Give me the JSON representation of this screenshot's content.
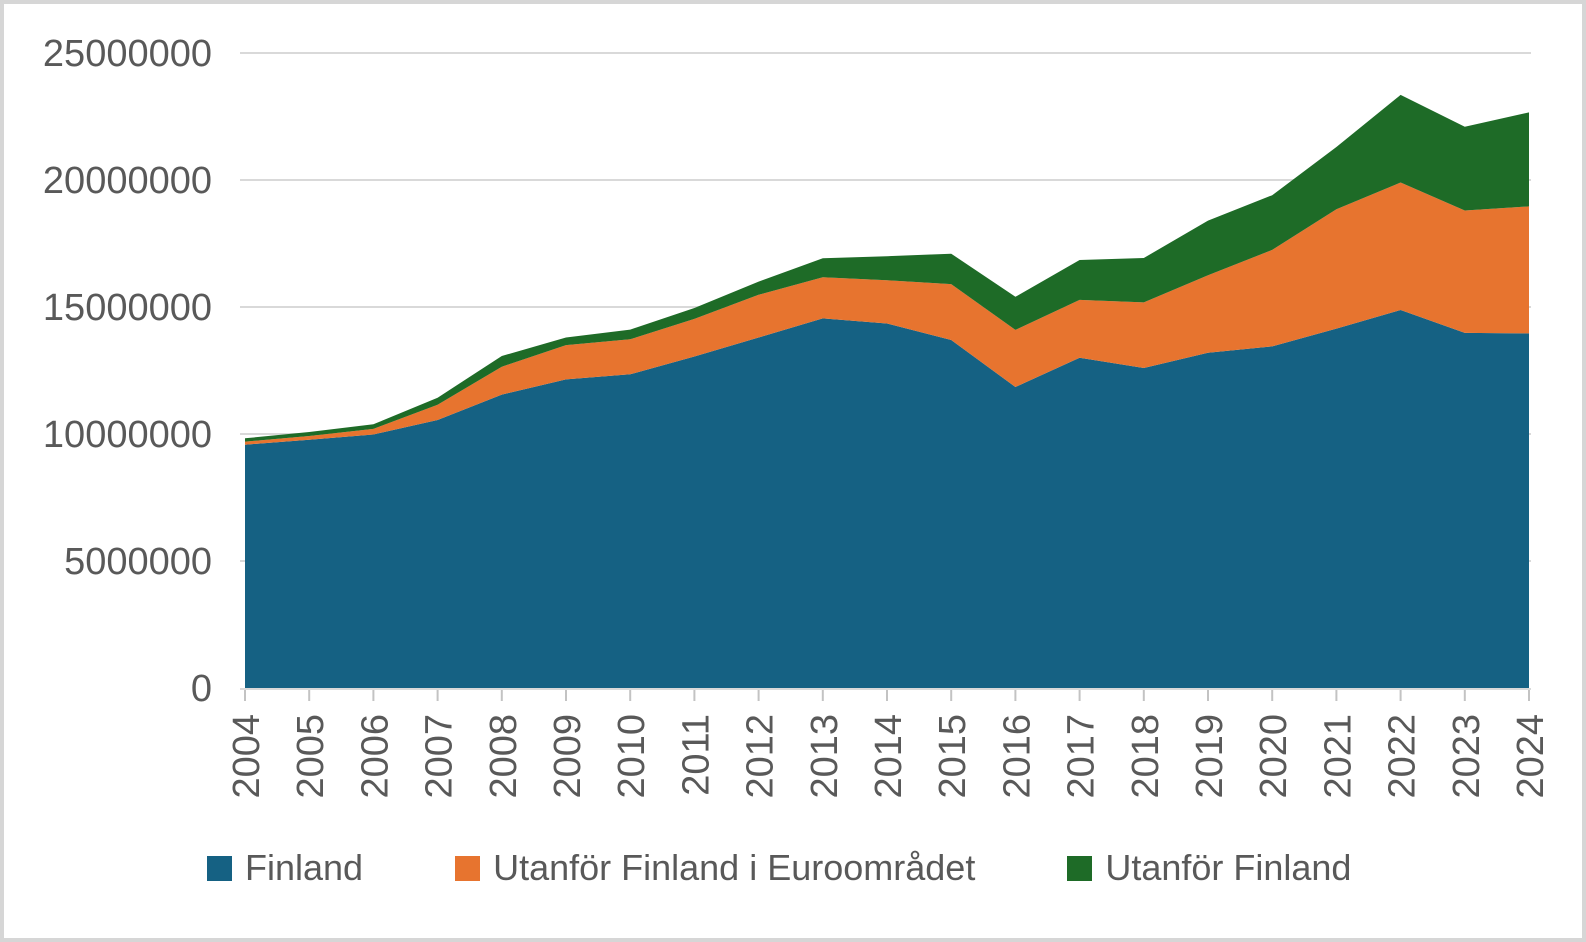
{
  "chart_data": {
    "type": "area",
    "subtype": "stacked",
    "title": "",
    "xlabel": "",
    "ylabel": "",
    "x": [
      2004,
      2005,
      2006,
      2007,
      2008,
      2009,
      2010,
      2011,
      2012,
      2013,
      2014,
      2015,
      2016,
      2017,
      2018,
      2019,
      2020,
      2021,
      2022,
      2023,
      2024
    ],
    "series": [
      {
        "name": "Finland",
        "color": "#156183",
        "values": [
          9580000,
          9770000,
          9980000,
          10550000,
          11550000,
          12150000,
          12350000,
          13050000,
          13800000,
          14550000,
          14350000,
          13700000,
          11850000,
          13000000,
          12600000,
          13200000,
          13450000,
          14150000,
          14880000,
          13980000,
          13960000
        ]
      },
      {
        "name": "Utanför Finland i Euroområdet",
        "color": "#E7742F",
        "values": [
          120000,
          150000,
          220000,
          600000,
          1100000,
          1350000,
          1380000,
          1480000,
          1680000,
          1620000,
          1700000,
          2200000,
          2250000,
          2280000,
          2580000,
          3050000,
          3800000,
          4700000,
          5020000,
          4820000,
          5000000
        ]
      },
      {
        "name": "Utanför Finland",
        "color": "#1E6B27",
        "values": [
          130000,
          160000,
          180000,
          280000,
          420000,
          300000,
          380000,
          430000,
          520000,
          750000,
          950000,
          1200000,
          1300000,
          1570000,
          1750000,
          2150000,
          2150000,
          2450000,
          3450000,
          3300000,
          3700000
        ]
      }
    ],
    "y_ticks": [
      0,
      5000000,
      10000000,
      15000000,
      20000000,
      25000000
    ],
    "ylim": [
      0,
      25000000
    ],
    "grid": "horizontal",
    "legend_position": "bottom",
    "colors": {
      "axis_text": "#595959",
      "gridline": "#d9d9d9",
      "tick_mark": "#c3c3c3",
      "axis_line": "#d9d9d9",
      "background": "#ffffff",
      "frame_border": "#d6d6d6"
    }
  }
}
